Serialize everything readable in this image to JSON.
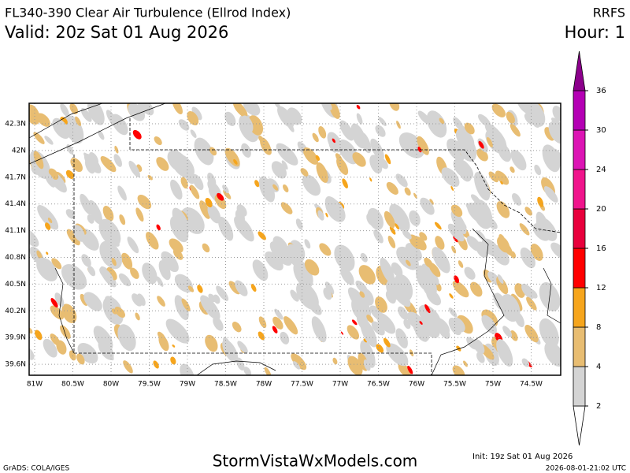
{
  "header": {
    "title": "FL340-390 Clear Air Turbulence (Ellrod Index)",
    "model": "RRFS",
    "valid": "Valid: 20z Sat 01 Aug 2026",
    "hour": "Hour: 1"
  },
  "map": {
    "lat_labels": [
      "42.3N",
      "42N",
      "41.7N",
      "41.4N",
      "41.1N",
      "40.8N",
      "40.5N",
      "40.2N",
      "39.9N",
      "39.6N"
    ],
    "lon_labels": [
      "81W",
      "80.5W",
      "80W",
      "79.5W",
      "79W",
      "78.5W",
      "78W",
      "77.5W",
      "77W",
      "76.5W",
      "76W",
      "75.5W",
      "75W",
      "74.5W"
    ]
  },
  "colorbar": {
    "ticks": [
      2,
      4,
      8,
      12,
      16,
      20,
      24,
      30,
      36
    ],
    "colors": [
      "#ffffff",
      "#d4d4d4",
      "#e8bd72",
      "#f6a51c",
      "#ff0000",
      "#e8003c",
      "#f0148c",
      "#dc14b4",
      "#b400b4",
      "#8c008c"
    ]
  },
  "footer": {
    "credit": "GrADS: COLA/IGES",
    "site": "StormVistaWxModels.com",
    "init": "Init: 19z Sat 01 Aug 2026",
    "stamp": "2026-08-01-21:02 UTC"
  }
}
